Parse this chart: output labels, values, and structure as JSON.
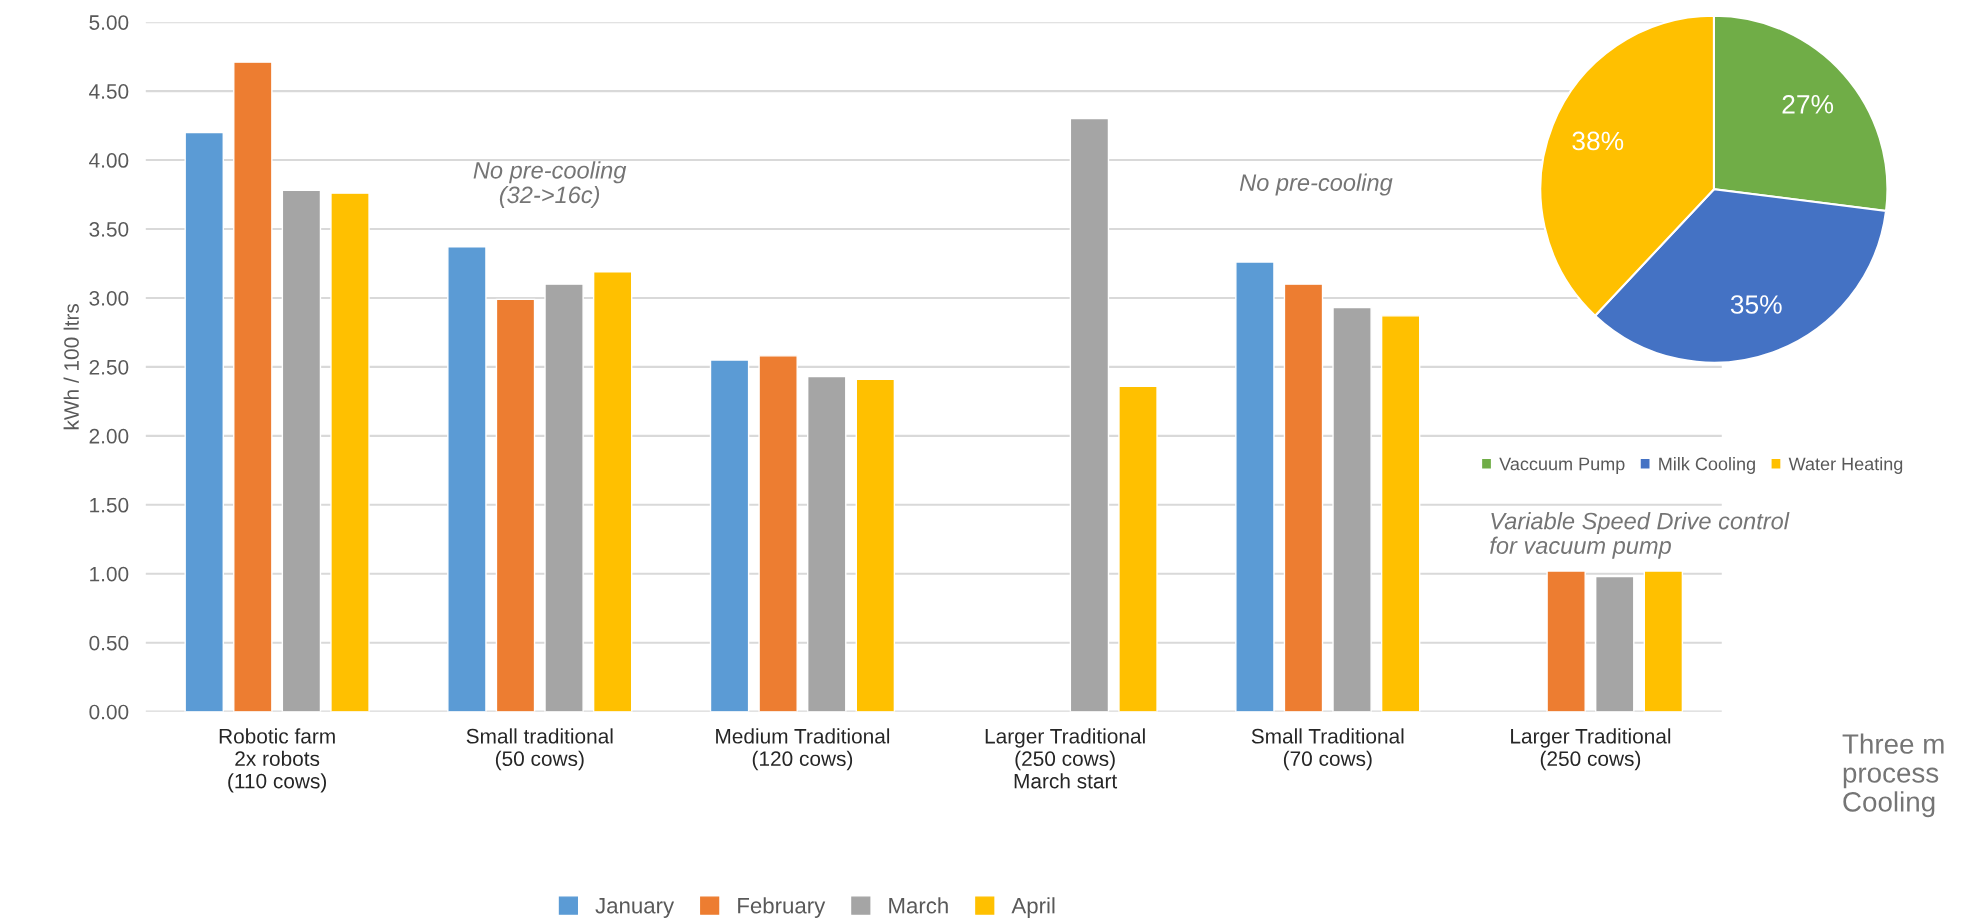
{
  "chart_data": [
    {
      "type": "bar",
      "ylabel": "kWh / 100 ltrs",
      "categories": [
        "Robotic farm\n2x robots\n(110 cows)",
        "Small traditional\n(50 cows)",
        "Medium Traditional\n(120 cows)",
        "Larger Traditional\n(250 cows)\nMarch start",
        "Small Traditional\n(70 cows)",
        "Larger Traditional\n(250 cows)"
      ],
      "series": [
        {
          "name": "January",
          "color": "#5b9bd5",
          "values": [
            4.2,
            3.37,
            2.55,
            null,
            3.26,
            null
          ]
        },
        {
          "name": "February",
          "color": "#ed7d31",
          "values": [
            4.71,
            2.99,
            2.58,
            null,
            3.1,
            1.02
          ]
        },
        {
          "name": "March",
          "color": "#a5a5a5",
          "values": [
            3.78,
            3.1,
            2.43,
            4.3,
            2.93,
            0.98
          ]
        },
        {
          "name": "April",
          "color": "#ffc000",
          "values": [
            3.76,
            3.19,
            2.41,
            2.36,
            2.87,
            1.02
          ]
        }
      ],
      "ylim": [
        0,
        5
      ],
      "yticks": [
        {
          "value": 0,
          "label": "0.00"
        },
        {
          "value": 0.5,
          "label": "0.50"
        },
        {
          "value": 1,
          "label": "1.00"
        },
        {
          "value": 1.5,
          "label": "1.50"
        },
        {
          "value": 2,
          "label": "2.00"
        },
        {
          "value": 2.5,
          "label": "2.50"
        },
        {
          "value": 3,
          "label": "3.00"
        },
        {
          "value": 3.5,
          "label": "3.50"
        },
        {
          "value": 4,
          "label": "4.00"
        },
        {
          "value": 4.5,
          "label": "4.50"
        },
        {
          "value": 5,
          "label": "5.00"
        }
      ],
      "grid": "y",
      "legend": "bottom",
      "annotations": [
        "No pre-cooling\n(32->16c)",
        "No pre-cooling",
        "Variable Speed Drive control\nfor vacuum pump",
        "Three m\nprocess\nCooling"
      ]
    },
    {
      "type": "pie",
      "categories": [
        "Vaccuum Pump",
        "Milk Cooling",
        "Water Heating"
      ],
      "values": [
        27,
        35,
        38
      ],
      "colors": [
        "#70ad47",
        "#4472c4",
        "#ffc000"
      ],
      "value_labels": [
        "27%",
        "35%",
        "38%"
      ],
      "legend": "bottom"
    }
  ]
}
